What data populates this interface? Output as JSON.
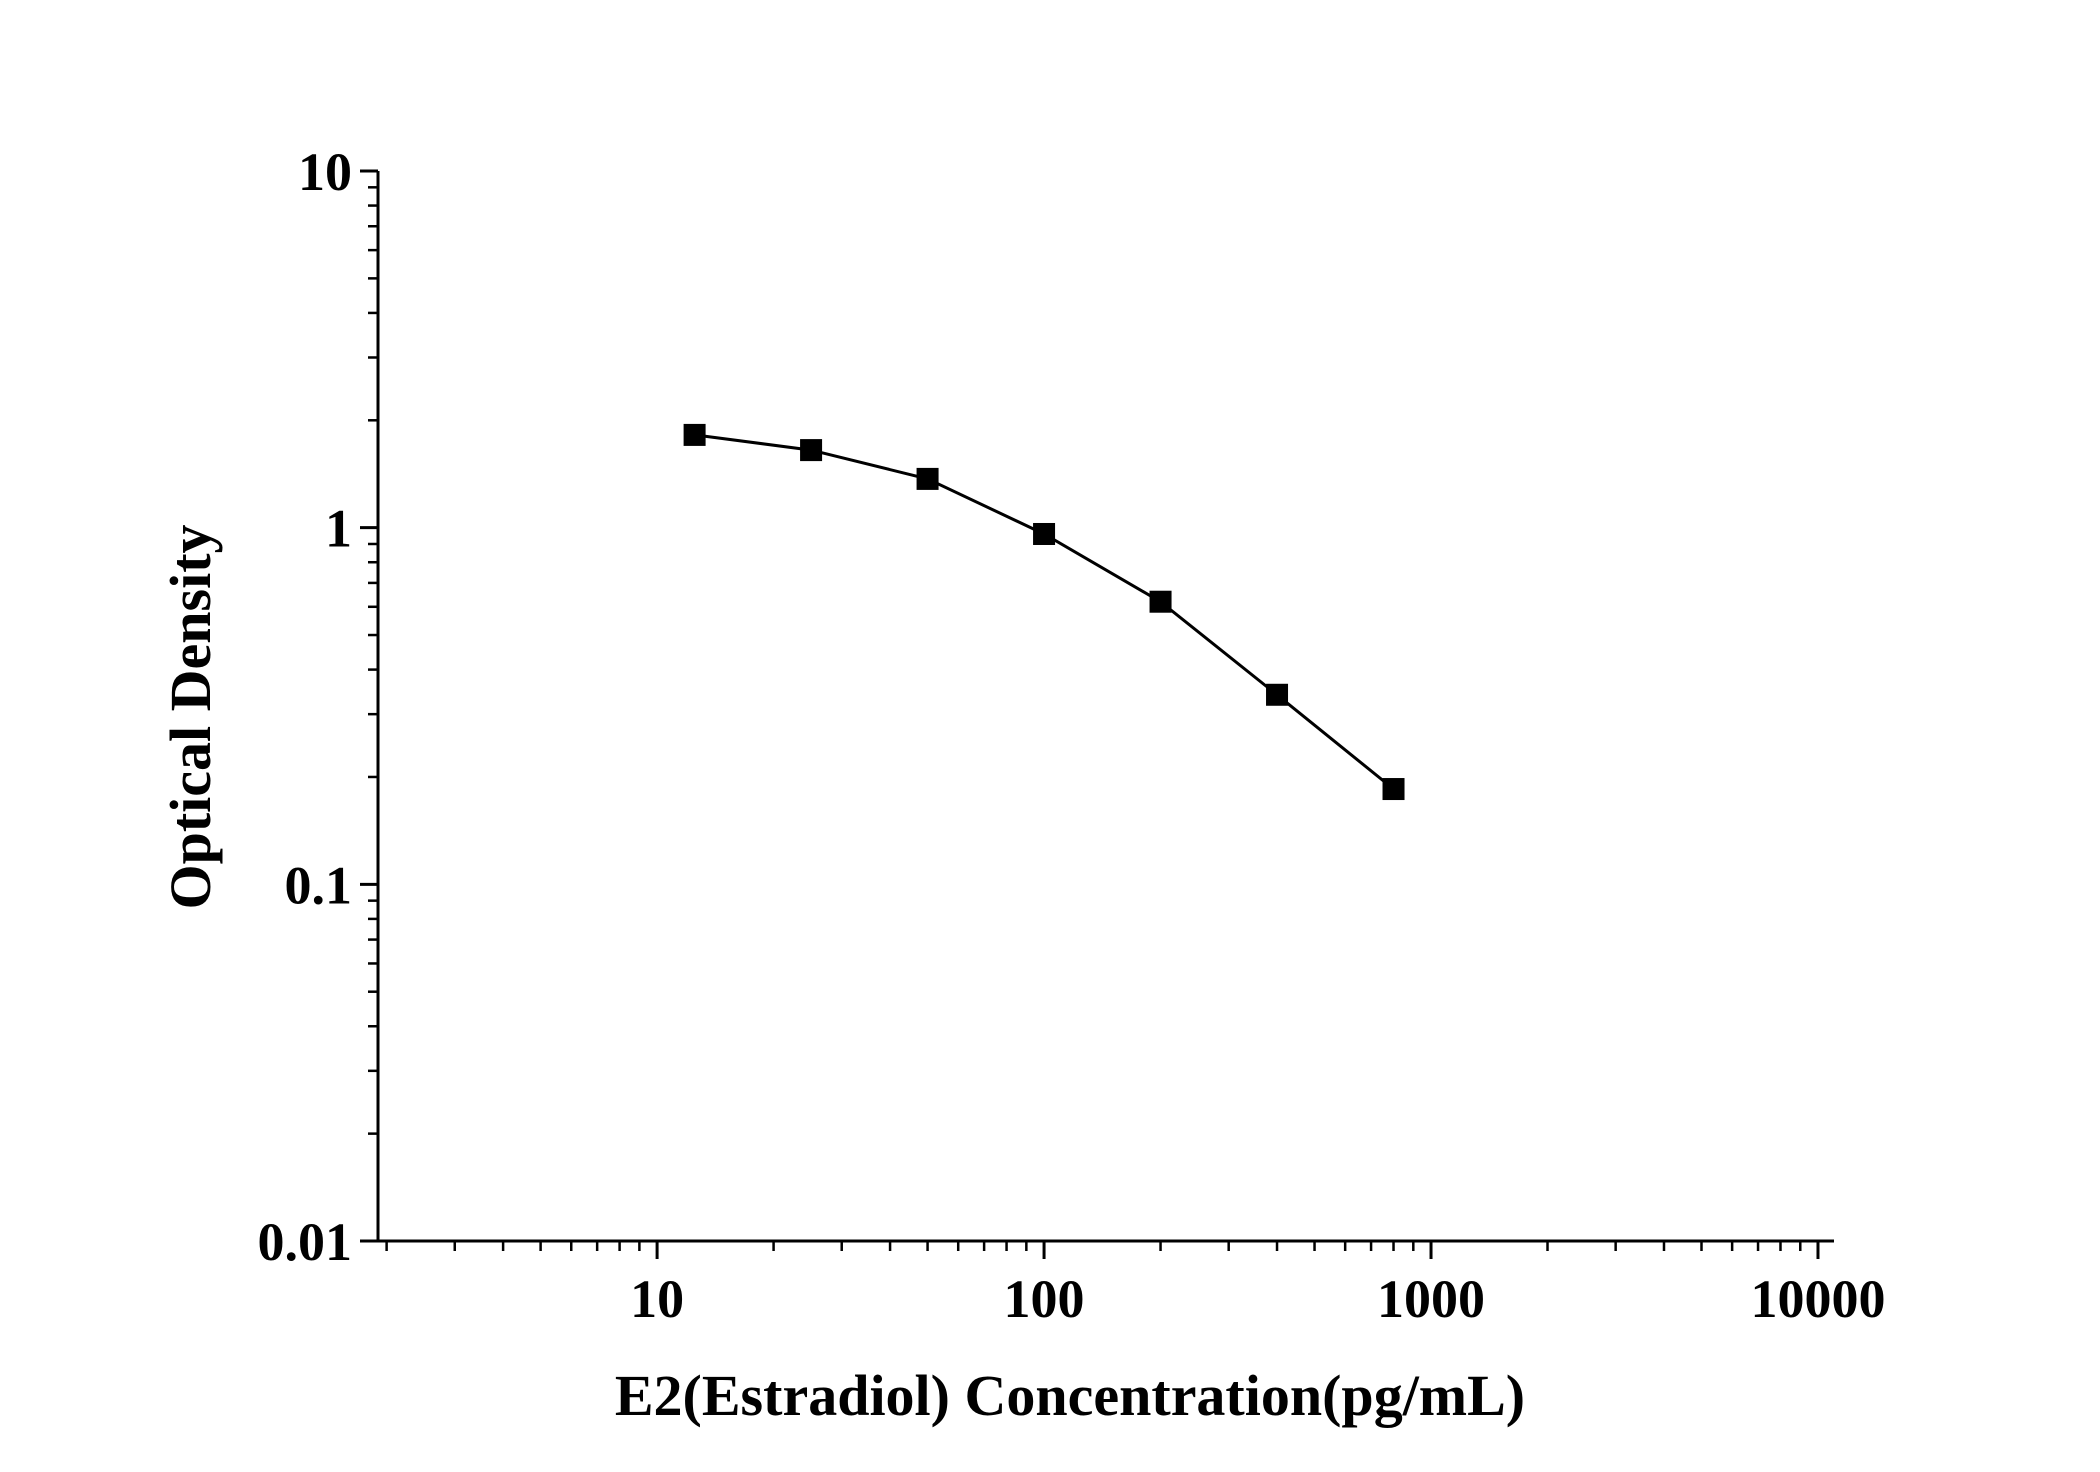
{
  "chart_data": {
    "type": "line",
    "title": "",
    "xlabel": "E2(Estradiol) Concentration(pg/mL)",
    "ylabel": "Optical Density",
    "x_scale": "log",
    "y_scale": "log",
    "xlim": [
      1.9,
      11000
    ],
    "ylim": [
      0.01,
      10
    ],
    "x_ticks": [
      10,
      100,
      1000,
      10000
    ],
    "x_tick_labels": [
      "10",
      "100",
      "1000",
      "10000"
    ],
    "y_ticks": [
      0.01,
      0.1,
      1,
      10
    ],
    "y_tick_labels": [
      "0.01",
      "0.1",
      "1",
      "10"
    ],
    "grid": false,
    "legend": "none",
    "series": [
      {
        "marker": "square",
        "color": "#000000",
        "x": [
          12.5,
          25,
          50,
          100,
          200,
          400,
          800
        ],
        "y": [
          1.82,
          1.65,
          1.37,
          0.96,
          0.62,
          0.34,
          0.185
        ]
      }
    ]
  }
}
